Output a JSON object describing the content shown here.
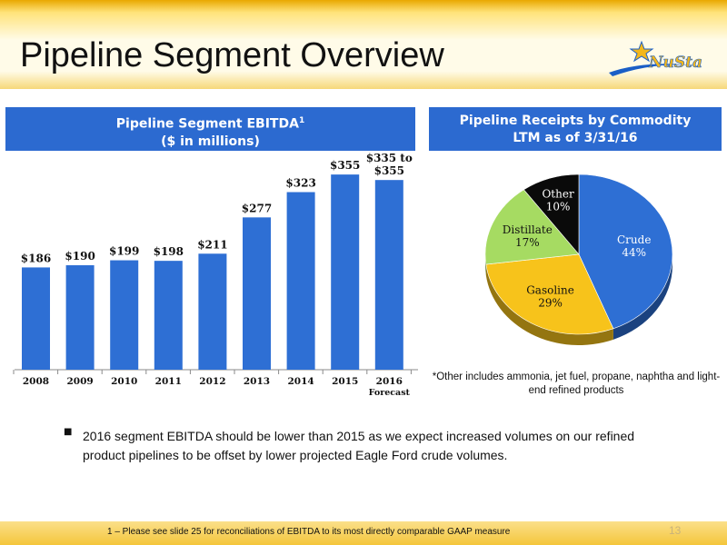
{
  "slide": {
    "title": "Pipeline Segment Overview",
    "logo_text": "NuStar",
    "page_number": "13",
    "footnote": "1 – Please see slide 25 for reconciliations of EBITDA to its most directly comparable GAAP measure",
    "bullet": "2016 segment EBITDA should be lower than 2015 as we expect increased volumes on our refined product pipelines to be offset by lower projected Eagle Ford crude volumes.",
    "pie_note": "*Other includes ammonia, jet fuel, propane, naphtha and light-end refined products"
  },
  "bar_box": {
    "title_line1": "Pipeline Segment EBITDA",
    "title_sup": "1",
    "title_line2": "($ in millions)"
  },
  "pie_box": {
    "title_line1": "Pipeline Receipts by Commodity",
    "title_line2": "LTM as of 3/31/16"
  },
  "chart_data": [
    {
      "type": "bar",
      "title": "Pipeline Segment EBITDA1 ($ in millions)",
      "categories": [
        "2008",
        "2009",
        "2010",
        "2011",
        "2012",
        "2013",
        "2014",
        "2015",
        "2016"
      ],
      "category_sublabels": [
        "",
        "",
        "",
        "",
        "",
        "",
        "",
        "",
        "Forecast"
      ],
      "values": [
        186,
        190,
        199,
        198,
        211,
        277,
        323,
        355,
        345
      ],
      "value_labels": [
        "$186",
        "$190",
        "$199",
        "$198",
        "$211",
        "$277",
        "$323",
        "$355",
        "$335 to $355"
      ],
      "range_2016": [
        335,
        355
      ],
      "ylim": [
        0,
        380
      ],
      "grid": false,
      "color": "#2e6fd4"
    },
    {
      "type": "pie",
      "title": "Pipeline Receipts by Commodity LTM as of 3/31/16",
      "labels": [
        "Crude",
        "Gasoline",
        "Distillate",
        "Other"
      ],
      "values": [
        44,
        29,
        17,
        10
      ],
      "value_labels": [
        "44%",
        "29%",
        "17%",
        "10%"
      ],
      "colors": [
        "#2e6fd4",
        "#f7c31b",
        "#a6db62",
        "#0a0a0a"
      ]
    }
  ]
}
